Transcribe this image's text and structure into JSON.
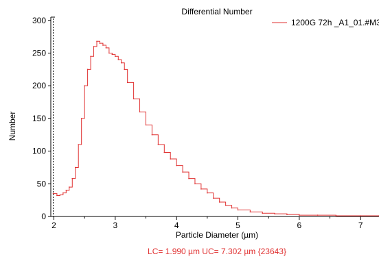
{
  "colors": {
    "series": "#e03030",
    "axis": "#000000",
    "grid_dash": "#000000",
    "footer": "#e03030"
  },
  "chart_data": {
    "type": "line",
    "title": "Differential Number",
    "xlabel": "Particle Diameter (µm)",
    "ylabel": "Number",
    "xlim": [
      1.95,
      7.3
    ],
    "ylim": [
      0,
      305
    ],
    "xticks": [
      2,
      3,
      4,
      5,
      6,
      7
    ],
    "yticks": [
      0,
      50,
      100,
      150,
      200,
      250,
      300
    ],
    "legend": {
      "position": "top-right"
    },
    "grid": false,
    "annotation": "LC= 1.990 µm   UC= 7.302 µm {23643}",
    "series": [
      {
        "name": "1200G 72h _A1_01.#M3",
        "x": [
          1.99,
          2.05,
          2.1,
          2.15,
          2.2,
          2.25,
          2.3,
          2.35,
          2.4,
          2.45,
          2.5,
          2.55,
          2.6,
          2.65,
          2.7,
          2.75,
          2.8,
          2.85,
          2.9,
          2.95,
          3.0,
          3.05,
          3.1,
          3.15,
          3.2,
          3.3,
          3.4,
          3.5,
          3.6,
          3.7,
          3.8,
          3.9,
          4.0,
          4.1,
          4.2,
          4.3,
          4.4,
          4.5,
          4.6,
          4.7,
          4.8,
          4.9,
          5.0,
          5.2,
          5.4,
          5.6,
          5.8,
          6.0,
          6.3,
          6.6,
          7.0,
          7.3
        ],
        "values": [
          35,
          32,
          33,
          36,
          40,
          45,
          58,
          75,
          110,
          150,
          200,
          225,
          245,
          260,
          268,
          265,
          262,
          258,
          250,
          248,
          245,
          240,
          235,
          225,
          205,
          180,
          160,
          140,
          125,
          110,
          98,
          88,
          78,
          68,
          58,
          50,
          42,
          36,
          28,
          22,
          17,
          13,
          10,
          7,
          5,
          4,
          3,
          2,
          2,
          1,
          1,
          1
        ]
      }
    ]
  }
}
